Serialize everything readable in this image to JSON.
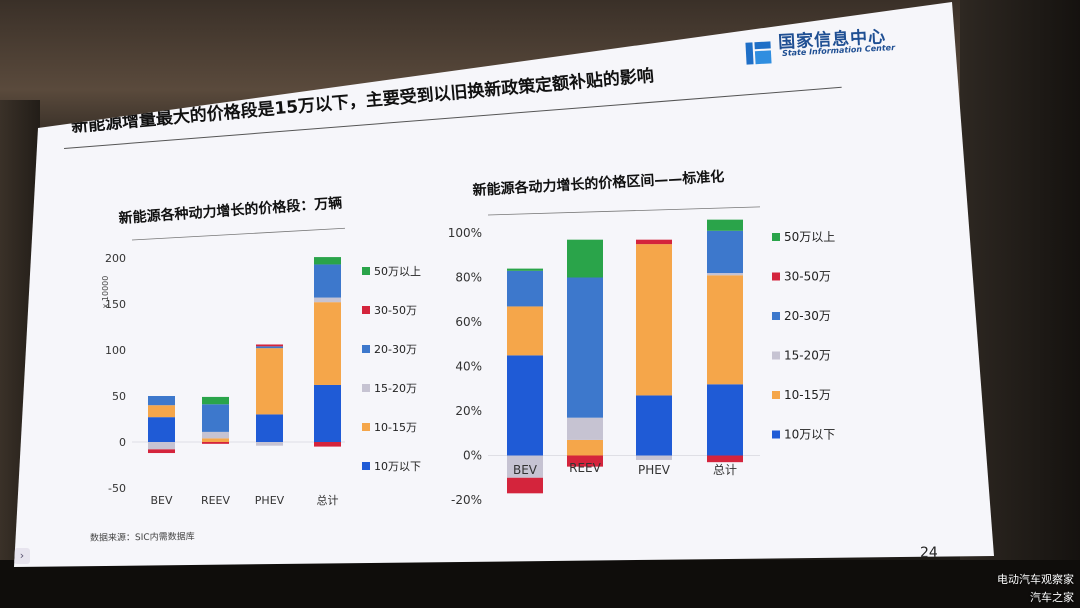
{
  "logo": {
    "name": "国家信息中心",
    "subtitle": "State Information Center"
  },
  "headline": "新能源增量最大的价格段是15万以下，主要受到以旧换新政策定额补贴的影响",
  "source": "数据来源：SIC内需数据库",
  "page_number": "24",
  "watermarks": [
    "电动汽车观察家",
    "汽车之家"
  ],
  "colors": {
    "lt10": "#1f5bd6",
    "w10_15": "#f5a64a",
    "w15_20": "#c6c3d2",
    "w20_30": "#3d78cc",
    "w30_50": "#d4243c",
    "gt50": "#2aa44a"
  },
  "chart_data": [
    {
      "type": "bar",
      "stacked": true,
      "title": "新能源各种动力增长的价格段：万辆",
      "ylabel": "x 10000",
      "ylim": [
        -50,
        200
      ],
      "yticks": [
        "200",
        "150",
        "100",
        "50",
        "0",
        "-50"
      ],
      "categories": [
        "BEV",
        "REEV",
        "PHEV",
        "总计"
      ],
      "series": [
        {
          "name": "10万以下",
          "values": [
            27,
            0,
            30,
            62
          ]
        },
        {
          "name": "10-15万",
          "values": [
            13,
            4,
            72,
            90
          ]
        },
        {
          "name": "15-20万",
          "values": [
            -8,
            7,
            -4,
            5
          ]
        },
        {
          "name": "20-30万",
          "values": [
            10,
            30,
            2,
            36
          ]
        },
        {
          "name": "30-50万",
          "values": [
            -4,
            -2,
            2,
            -5
          ]
        },
        {
          "name": "50万以上",
          "values": [
            0,
            8,
            0,
            8
          ]
        }
      ],
      "legend": [
        "50万以上",
        "30-50万",
        "20-30万",
        "15-20万",
        "10-15万",
        "10万以下"
      ]
    },
    {
      "type": "bar",
      "stacked": true,
      "title": "新能源各动力增长的价格区间——标准化",
      "ylim": [
        -20,
        100
      ],
      "yticks": [
        "100%",
        "80%",
        "60%",
        "40%",
        "20%",
        "0%",
        "-20%"
      ],
      "categories": [
        "BEV",
        "REEV",
        "PHEV",
        "总计"
      ],
      "series": [
        {
          "name": "10万以下",
          "values": [
            45,
            0,
            27,
            32
          ]
        },
        {
          "name": "10-15万",
          "values": [
            22,
            7,
            68,
            49
          ]
        },
        {
          "name": "15-20万",
          "values": [
            -10,
            10,
            -2,
            1
          ]
        },
        {
          "name": "20-30万",
          "values": [
            16,
            63,
            0,
            19
          ]
        },
        {
          "name": "30-50万",
          "values": [
            -7,
            -5,
            2,
            -3
          ]
        },
        {
          "name": "50万以上",
          "values": [
            1,
            17,
            0,
            5
          ]
        }
      ],
      "legend": [
        "50万以上",
        "30-50万",
        "20-30万",
        "15-20万",
        "10-15万",
        "10万以下"
      ]
    }
  ]
}
